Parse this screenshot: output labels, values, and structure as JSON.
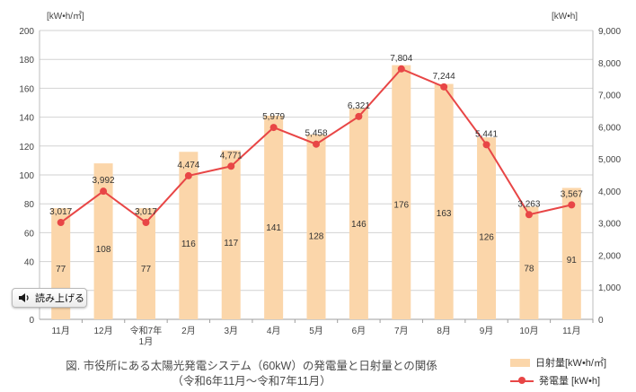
{
  "chart_data": {
    "type": "bar+line",
    "categories": [
      "11月",
      "12月",
      "令和7年\n1月",
      "2月",
      "3月",
      "4月",
      "5月",
      "6月",
      "7月",
      "8月",
      "9月",
      "10月",
      "11月"
    ],
    "series": [
      {
        "name": "日射量[kW•h/㎡]",
        "type": "bar",
        "axis": "left",
        "values": [
          77,
          108,
          77,
          116,
          117,
          141,
          128,
          146,
          176,
          163,
          126,
          78,
          91
        ],
        "color": "#fbd6aa"
      },
      {
        "name": "発電量 [kW•h]",
        "type": "line",
        "axis": "right",
        "values": [
          3017,
          3992,
          3017,
          4474,
          4771,
          5979,
          5458,
          6321,
          7804,
          7244,
          5441,
          3263,
          3567
        ],
        "labels": [
          "3,017",
          "3,992",
          "3,017",
          "4,474",
          "4,771",
          "5,979",
          "5,458",
          "6,321",
          "7,804",
          "7,244",
          "5,441",
          "3,263",
          "3,567"
        ],
        "color": "#e84646"
      }
    ],
    "y_left": {
      "unit": "[kW•h/㎡]",
      "ylim": [
        0,
        200
      ],
      "ticks": [
        "0",
        "20",
        "40",
        "60",
        "80",
        "100",
        "120",
        "140",
        "160",
        "180",
        "200"
      ]
    },
    "y_right": {
      "unit": "[kW•h]",
      "ylim": [
        0,
        9000
      ],
      "ticks": [
        "0",
        "1,000",
        "2,000",
        "3,000",
        "4,000",
        "5,000",
        "6,000",
        "7,000",
        "8,000",
        "9,000"
      ]
    },
    "grid": true,
    "legend_position": "bottom-right",
    "title_lines": [
      "図. 市役所にある太陽光発電システム（60kW）の発電量と日射量との関係",
      "（令和6年11月～令和7年11月）"
    ]
  },
  "widgets": {
    "read_aloud_label": "読み上げる",
    "read_aloud_icon": "speaker-icon"
  },
  "colors": {
    "grid": "#d2d2d2",
    "axis_text": "#444444",
    "label_text": "#333333"
  }
}
